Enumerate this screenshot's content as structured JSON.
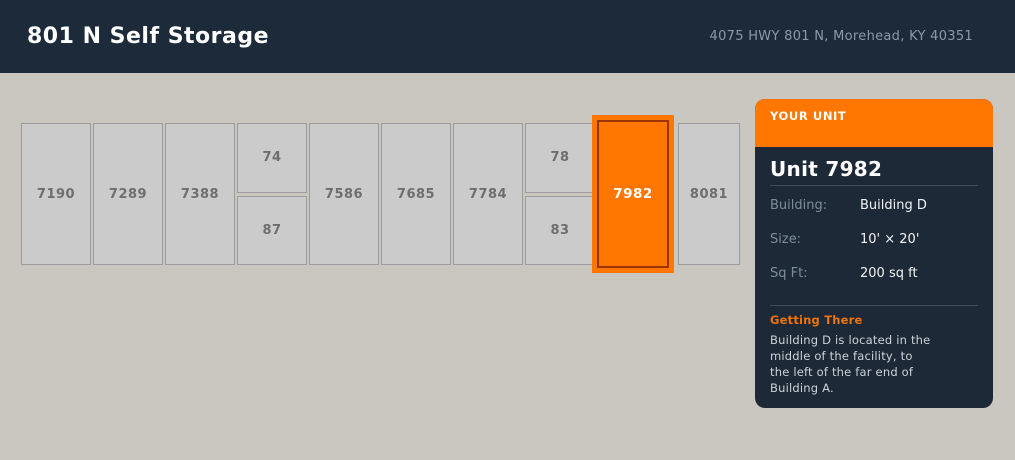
{
  "header": {
    "title": "801 N Self Storage",
    "address": "4075 HWY 801 N, Morehead, KY 40351"
  },
  "map": {
    "columns": [
      {
        "type": "unit",
        "label": "7190"
      },
      {
        "type": "unit",
        "label": "7289"
      },
      {
        "type": "unit",
        "label": "7388"
      },
      {
        "type": "split",
        "labels": [
          "74",
          "87"
        ]
      },
      {
        "type": "unit",
        "label": "7586"
      },
      {
        "type": "unit",
        "label": "7685"
      },
      {
        "type": "unit",
        "label": "7784"
      },
      {
        "type": "split",
        "labels": [
          "78",
          "83"
        ]
      },
      {
        "type": "unit",
        "label": "7982",
        "selected": true
      },
      {
        "type": "unit",
        "label": "8081"
      }
    ]
  },
  "panel": {
    "banner": "YOUR UNIT",
    "title": "Unit 7982",
    "fields": [
      {
        "label": "Building:",
        "value": "Building D"
      },
      {
        "label": "Size:",
        "value": "10' × 20'"
      },
      {
        "label": "Sq Ft:",
        "value": "200 sq ft"
      }
    ],
    "directions_title": "Getting There",
    "directions_text": "Building D is located in the middle of the facility, to the left of the far end of Building A."
  },
  "colors": {
    "accent_orange": "#ff7600",
    "selected_border": "#9a3400",
    "topbar_bg": "#1c2a3a",
    "panel_bg": "#1d2936",
    "unit_fill": "#cbcbcb",
    "unit_border": "#9b9b9b",
    "page_bg": "#c9c7bf"
  }
}
